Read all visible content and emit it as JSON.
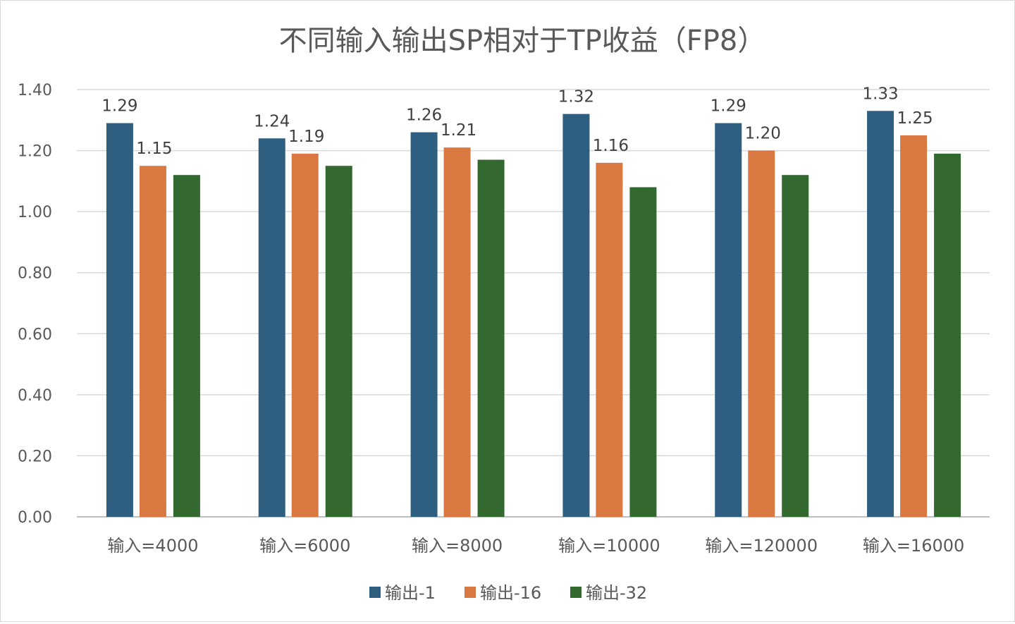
{
  "chart_data": {
    "type": "bar",
    "title": "不同输入输出SP相对于TP收益（FP8）",
    "xlabel": "",
    "ylabel": "",
    "ylim": [
      0,
      1.4
    ],
    "yticks": [
      "0.00",
      "0.20",
      "0.40",
      "0.60",
      "0.80",
      "1.00",
      "1.20",
      "1.40"
    ],
    "grid": true,
    "legend_position": "bottom",
    "categories": [
      "输入=4000",
      "输入=6000",
      "输入=8000",
      "输入=10000",
      "输入=120000",
      "输入=16000"
    ],
    "series": [
      {
        "name": "输出-1",
        "color": "#2e5f80",
        "values": [
          1.29,
          1.24,
          1.26,
          1.32,
          1.29,
          1.33
        ],
        "labels": [
          "1.29",
          "1.24",
          "1.26",
          "1.32",
          "1.29",
          "1.33"
        ]
      },
      {
        "name": "输出-16",
        "color": "#d97841",
        "values": [
          1.15,
          1.19,
          1.21,
          1.16,
          1.2,
          1.25
        ],
        "labels": [
          "1.15",
          "1.19",
          "1.21",
          "1.16",
          "1.20",
          "1.25"
        ]
      },
      {
        "name": "输出-32",
        "color": "#33692e",
        "values": [
          1.12,
          1.15,
          1.17,
          1.08,
          1.12,
          1.19
        ],
        "labels": null
      }
    ]
  }
}
